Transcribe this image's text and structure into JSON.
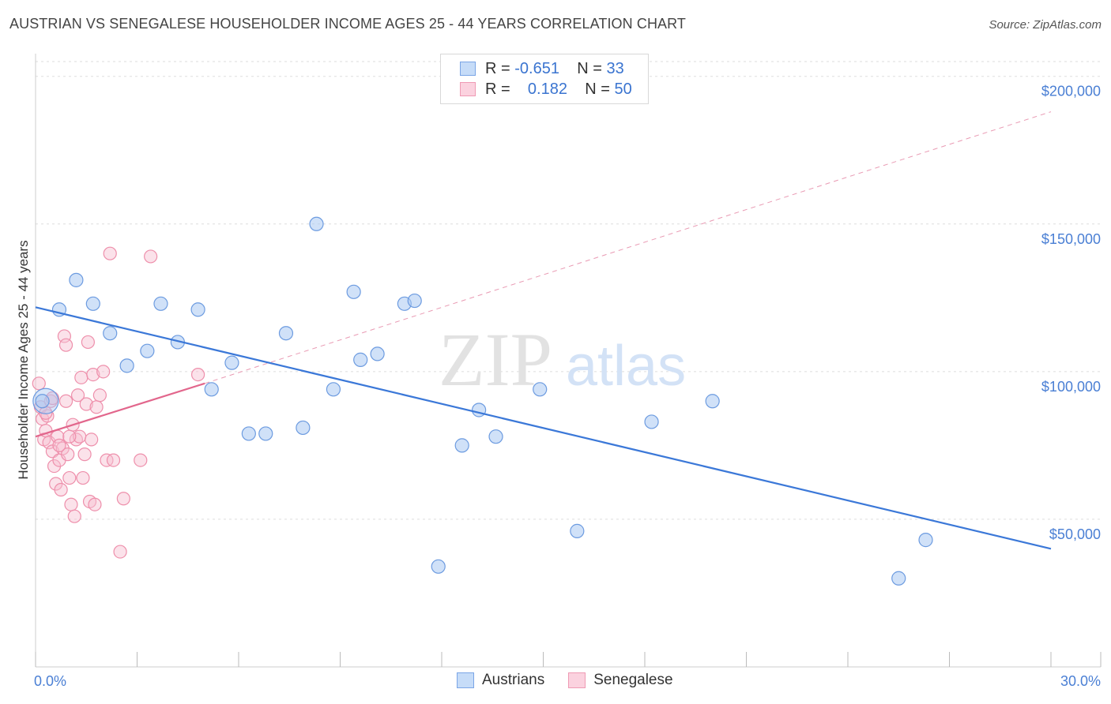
{
  "header": {
    "title": "AUSTRIAN VS SENEGALESE HOUSEHOLDER INCOME AGES 25 - 44 YEARS CORRELATION CHART",
    "source": "Source: ZipAtlas.com"
  },
  "legend": {
    "rows": [
      {
        "r_label": "R =",
        "r_value": "-0.651",
        "n_label": "N =",
        "n_value": "33"
      },
      {
        "r_label": "R =",
        "r_value": "0.182",
        "n_label": "N =",
        "n_value": "50"
      }
    ]
  },
  "bottom_legend": {
    "austrians": "Austrians",
    "senegalese": "Senegalese"
  },
  "watermark": {
    "zip": "ZIP",
    "atlas": "atlas"
  },
  "colors": {
    "blue_fill": "#aac8f2",
    "blue_stroke": "#6c9be0",
    "blue_line": "#3b78d8",
    "pink_fill": "#f7bfd0",
    "pink_stroke": "#ee8fab",
    "pink_line": "#e2668c",
    "grid": "#dddddd",
    "axis_label": "#4a7fd4"
  },
  "chart_data": {
    "type": "scatter",
    "title": "AUSTRIAN VS SENEGALESE HOUSEHOLDER INCOME AGES 25 - 44 YEARS CORRELATION CHART",
    "xlabel": "",
    "ylabel": "Householder Income Ages 25 - 44 years",
    "xlim": [
      0,
      30
    ],
    "ylim": [
      0,
      205000
    ],
    "x_tick_labels": [
      "0.0%",
      "30.0%"
    ],
    "y_ticks": [
      50000,
      100000,
      150000,
      200000
    ],
    "y_tick_labels": [
      "$50,000",
      "$100,000",
      "$150,000",
      "$200,000"
    ],
    "grid": true,
    "series": [
      {
        "name": "Austrians",
        "R": -0.651,
        "N": 33,
        "points": [
          [
            0.2,
            90000
          ],
          [
            0.7,
            121000
          ],
          [
            1.2,
            131000
          ],
          [
            1.7,
            123000
          ],
          [
            2.2,
            113000
          ],
          [
            2.7,
            102000
          ],
          [
            3.3,
            107000
          ],
          [
            3.7,
            123000
          ],
          [
            4.2,
            110000
          ],
          [
            4.8,
            121000
          ],
          [
            5.2,
            94000
          ],
          [
            5.8,
            103000
          ],
          [
            6.3,
            79000
          ],
          [
            6.8,
            79000
          ],
          [
            7.4,
            113000
          ],
          [
            7.9,
            81000
          ],
          [
            8.3,
            150000
          ],
          [
            8.8,
            94000
          ],
          [
            9.4,
            127000
          ],
          [
            9.6,
            104000
          ],
          [
            10.1,
            106000
          ],
          [
            10.9,
            123000
          ],
          [
            11.2,
            124000
          ],
          [
            11.9,
            34000
          ],
          [
            12.6,
            75000
          ],
          [
            13.1,
            87000
          ],
          [
            13.6,
            78000
          ],
          [
            14.9,
            94000
          ],
          [
            16.0,
            46000
          ],
          [
            18.2,
            83000
          ],
          [
            20.0,
            90000
          ],
          [
            25.5,
            30000
          ],
          [
            26.3,
            43000
          ]
        ],
        "trend": {
          "x": [
            0,
            30
          ],
          "y": [
            121800,
            40000
          ]
        }
      },
      {
        "name": "Senegalese",
        "R": 0.182,
        "N": 50,
        "points": [
          [
            0.1,
            96000
          ],
          [
            0.15,
            88000
          ],
          [
            0.2,
            84000
          ],
          [
            0.25,
            77000
          ],
          [
            0.3,
            80000
          ],
          [
            0.35,
            85000
          ],
          [
            0.4,
            76000
          ],
          [
            0.45,
            90000
          ],
          [
            0.5,
            73000
          ],
          [
            0.55,
            68000
          ],
          [
            0.6,
            62000
          ],
          [
            0.65,
            78000
          ],
          [
            0.7,
            70000
          ],
          [
            0.75,
            60000
          ],
          [
            0.8,
            74000
          ],
          [
            0.85,
            112000
          ],
          [
            0.9,
            109000
          ],
          [
            0.95,
            72000
          ],
          [
            1.0,
            64000
          ],
          [
            1.05,
            55000
          ],
          [
            1.1,
            82000
          ],
          [
            1.15,
            51000
          ],
          [
            1.2,
            77000
          ],
          [
            1.25,
            92000
          ],
          [
            1.3,
            78000
          ],
          [
            1.35,
            98000
          ],
          [
            1.4,
            64000
          ],
          [
            1.45,
            72000
          ],
          [
            1.5,
            89000
          ],
          [
            1.55,
            110000
          ],
          [
            1.6,
            56000
          ],
          [
            1.65,
            77000
          ],
          [
            1.7,
            99000
          ],
          [
            1.75,
            55000
          ],
          [
            1.8,
            88000
          ],
          [
            1.9,
            92000
          ],
          [
            2.0,
            100000
          ],
          [
            2.1,
            70000
          ],
          [
            2.2,
            140000
          ],
          [
            2.3,
            70000
          ],
          [
            2.5,
            39000
          ],
          [
            2.6,
            57000
          ],
          [
            3.1,
            70000
          ],
          [
            3.4,
            139000
          ],
          [
            0.5,
            91000
          ],
          [
            0.7,
            75000
          ],
          [
            1.0,
            78000
          ],
          [
            0.3,
            86000
          ],
          [
            0.9,
            90000
          ],
          [
            4.8,
            99000
          ]
        ],
        "trend": {
          "x": [
            0,
            5
          ],
          "y": [
            78000,
            96000
          ]
        },
        "trend_extension": {
          "x": [
            5,
            30
          ],
          "y": [
            96000,
            188000
          ]
        }
      }
    ]
  }
}
